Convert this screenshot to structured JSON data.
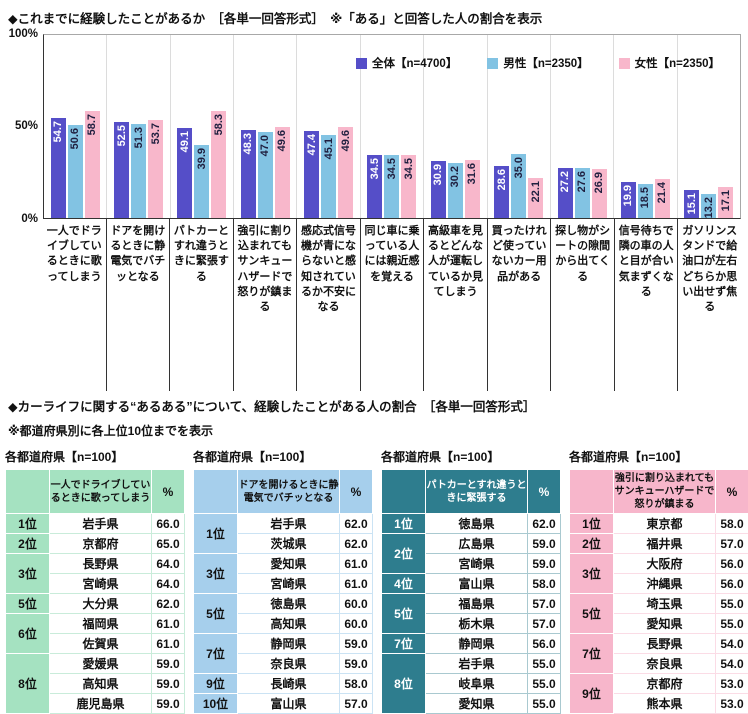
{
  "header": {
    "chart_title": "◆これまでに経験したことがあるか　［各単一回答形式］　※「ある」と回答した人の割合を表示",
    "section2_title": "◆カーライフに関する“あるある”について、経験したことがある人の割合　［各単一回答形式］",
    "section2_note": "※都道府県別に各上位10位までを表示"
  },
  "chart_data": {
    "type": "bar",
    "ylim": [
      0,
      100
    ],
    "yticks": [
      "100%",
      "50%",
      "0%"
    ],
    "grid": "vertical-category-separators",
    "legend_position": "top-right-inside",
    "categories": [
      "一人でドライブしているときに歌ってしまう",
      "ドアを開けるときに静電気でバチッとなる",
      "パトカーとすれ違うときに緊張する",
      "強引に割り込まれてもサンキューハザードで怒りが鎮まる",
      "感応式信号機が青にならないと感知されているか不安になる",
      "同じ車に乗っている人には親近感を覚える",
      "高級車を見るとどんな人が運転しているか見てしまう",
      "買ったけれど使っていないカー用品がある",
      "探し物がシートの隙間から出てくる",
      "信号待ちで隣の車の人と目が合い気まずくなる",
      "ガソリンスタンドで給油口が左右どちらか思い出せず焦る"
    ],
    "series": [
      {
        "name": "全体【n=4700】",
        "color": "#554EC8",
        "text_color": "#ffffff",
        "values": [
          54.7,
          52.5,
          49.1,
          48.3,
          47.4,
          34.5,
          30.9,
          28.6,
          27.2,
          19.9,
          15.1
        ]
      },
      {
        "name": "男性【n=2350】",
        "color": "#82C3E3",
        "text_color": "#1f1f3f",
        "values": [
          50.6,
          51.3,
          39.9,
          47.0,
          45.1,
          34.5,
          30.2,
          35.0,
          27.6,
          18.5,
          13.2
        ]
      },
      {
        "name": "女性【n=2350】",
        "color": "#F8B7CB",
        "text_color": "#1f1f3f",
        "values": [
          58.7,
          53.7,
          58.3,
          49.6,
          49.6,
          34.5,
          31.6,
          22.1,
          26.9,
          21.4,
          17.1
        ]
      }
    ]
  },
  "tables": {
    "n_label": "各都道府県【n=100】",
    "percent_header": "%",
    "items": [
      {
        "theme": {
          "bg": "#A5E2C1",
          "fg": "#111111",
          "border": "#C9ECDA"
        },
        "title": "一人でドライブしているときに歌ってしまう",
        "rows": [
          {
            "rank": "1位",
            "prefs": [
              {
                "name": "岩手県",
                "value": "66.0"
              }
            ]
          },
          {
            "rank": "2位",
            "prefs": [
              {
                "name": "京都府",
                "value": "65.0"
              }
            ]
          },
          {
            "rank": "3位",
            "prefs": [
              {
                "name": "長野県",
                "value": "64.0"
              },
              {
                "name": "宮崎県",
                "value": "64.0"
              }
            ]
          },
          {
            "rank": "5位",
            "prefs": [
              {
                "name": "大分県",
                "value": "62.0"
              }
            ]
          },
          {
            "rank": "6位",
            "prefs": [
              {
                "name": "福岡県",
                "value": "61.0"
              },
              {
                "name": "佐賀県",
                "value": "61.0"
              }
            ]
          },
          {
            "rank": "8位",
            "prefs": [
              {
                "name": "愛媛県",
                "value": "59.0"
              },
              {
                "name": "高知県",
                "value": "59.0"
              },
              {
                "name": "鹿児島県",
                "value": "59.0"
              }
            ]
          }
        ]
      },
      {
        "theme": {
          "bg": "#A6CFEC",
          "fg": "#111111",
          "border": "#CBE3F4"
        },
        "title": "ドアを開けるときに静電気でバチッとなる",
        "rows": [
          {
            "rank": "1位",
            "prefs": [
              {
                "name": "岩手県",
                "value": "62.0"
              },
              {
                "name": "茨城県",
                "value": "62.0"
              }
            ]
          },
          {
            "rank": "3位",
            "prefs": [
              {
                "name": "愛知県",
                "value": "61.0"
              },
              {
                "name": "宮崎県",
                "value": "61.0"
              }
            ]
          },
          {
            "rank": "5位",
            "prefs": [
              {
                "name": "徳島県",
                "value": "60.0"
              },
              {
                "name": "高知県",
                "value": "60.0"
              }
            ]
          },
          {
            "rank": "7位",
            "prefs": [
              {
                "name": "静岡県",
                "value": "59.0"
              },
              {
                "name": "奈良県",
                "value": "59.0"
              }
            ]
          },
          {
            "rank": "9位",
            "prefs": [
              {
                "name": "長崎県",
                "value": "58.0"
              }
            ]
          },
          {
            "rank": "10位",
            "prefs": [
              {
                "name": "富山県",
                "value": "57.0"
              }
            ]
          }
        ]
      },
      {
        "theme": {
          "bg": "#2E7D8E",
          "fg": "#ffffff",
          "border": "#A9C9D0"
        },
        "title": "パトカーとすれ違うときに緊張する",
        "rows": [
          {
            "rank": "1位",
            "prefs": [
              {
                "name": "徳島県",
                "value": "62.0"
              }
            ]
          },
          {
            "rank": "2位",
            "prefs": [
              {
                "name": "広島県",
                "value": "59.0"
              },
              {
                "name": "宮崎県",
                "value": "59.0"
              }
            ]
          },
          {
            "rank": "4位",
            "prefs": [
              {
                "name": "富山県",
                "value": "58.0"
              }
            ]
          },
          {
            "rank": "5位",
            "prefs": [
              {
                "name": "福島県",
                "value": "57.0"
              },
              {
                "name": "栃木県",
                "value": "57.0"
              }
            ]
          },
          {
            "rank": "7位",
            "prefs": [
              {
                "name": "静岡県",
                "value": "56.0"
              }
            ]
          },
          {
            "rank": "8位",
            "prefs": [
              {
                "name": "岩手県",
                "value": "55.0"
              },
              {
                "name": "岐阜県",
                "value": "55.0"
              },
              {
                "name": "愛知県",
                "value": "55.0"
              }
            ]
          }
        ]
      },
      {
        "theme": {
          "bg": "#F7B6CB",
          "fg": "#111111",
          "border": "#FBDCE6"
        },
        "title": "強引に割り込まれてもサンキューハザードで怒りが鎮まる",
        "rows": [
          {
            "rank": "1位",
            "prefs": [
              {
                "name": "東京都",
                "value": "58.0"
              }
            ]
          },
          {
            "rank": "2位",
            "prefs": [
              {
                "name": "福井県",
                "value": "57.0"
              }
            ]
          },
          {
            "rank": "3位",
            "prefs": [
              {
                "name": "大阪府",
                "value": "56.0"
              },
              {
                "name": "沖縄県",
                "value": "56.0"
              }
            ]
          },
          {
            "rank": "5位",
            "prefs": [
              {
                "name": "埼玉県",
                "value": "55.0"
              },
              {
                "name": "愛知県",
                "value": "55.0"
              }
            ]
          },
          {
            "rank": "7位",
            "prefs": [
              {
                "name": "長野県",
                "value": "54.0"
              },
              {
                "name": "奈良県",
                "value": "54.0"
              }
            ]
          },
          {
            "rank": "9位",
            "prefs": [
              {
                "name": "京都府",
                "value": "53.0"
              },
              {
                "name": "熊本県",
                "value": "53.0"
              }
            ]
          }
        ]
      }
    ]
  }
}
